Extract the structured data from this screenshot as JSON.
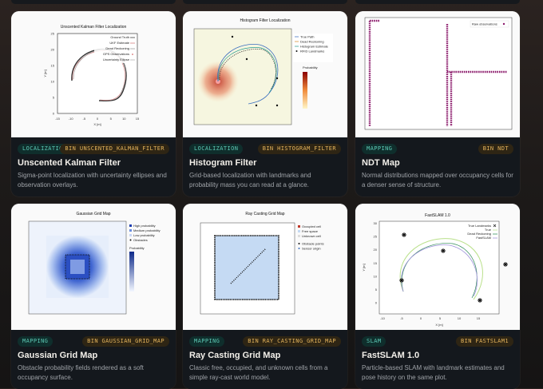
{
  "colors": {
    "tag_category_text": "#5dc9b5",
    "tag_bin_text": "#e4b45c",
    "card_bg": "#14181d"
  },
  "cards": [
    {
      "category": "LOCALIZATION",
      "bin": "BIN UNSCENTED_KALMAN_FILTER",
      "title": "Unscented Kalman Filter",
      "description": "Sigma-point localization with uncertainty ellipses and observation overlays.",
      "plot": {
        "title": "Unscented Kalman Filter Localization",
        "xlabel": "X [m]",
        "ylabel": "Y [m]",
        "xticks": [
          "-15",
          "-10",
          "-5",
          "0",
          "5",
          "10",
          "15"
        ],
        "yticks": [
          "25",
          "20",
          "15",
          "10",
          "5",
          "0"
        ],
        "legend": [
          "Ground Truth",
          "UKF Estimate",
          "Dead Reckoning",
          "GPS Observations",
          "Uncertainty Ellipse"
        ]
      }
    },
    {
      "category": "LOCALIZATION",
      "bin": "BIN HISTOGRAM_FILTER",
      "title": "Histogram Filter",
      "description": "Grid-based localization with landmarks and probability mass you can read at a glance.",
      "plot": {
        "title": "Histogram Filter Localization",
        "legend": [
          "True Path",
          "Dead Reckoning",
          "Histogram Estimate",
          "RFID Landmarks"
        ],
        "colorbar_label": "Probability"
      }
    },
    {
      "category": "MAPPING",
      "bin": "BIN NDT",
      "title": "NDT Map",
      "description": "Normal distributions mapped over occupancy cells for a denser sense of structure.",
      "plot": {
        "legend": [
          "Raw observations"
        ]
      }
    },
    {
      "category": "MAPPING",
      "bin": "BIN GAUSSIAN_GRID_MAP",
      "title": "Gaussian Grid Map",
      "description": "Obstacle probability fields rendered as a soft occupancy surface.",
      "plot": {
        "title": "Gaussian Grid Map",
        "legend": [
          "High probability",
          "Medium probability",
          "Low probability",
          "Obstacles"
        ],
        "colorbar_label": "Probability"
      }
    },
    {
      "category": "MAPPING",
      "bin": "BIN RAY_CASTING_GRID_MAP",
      "title": "Ray Casting Grid Map",
      "description": "Classic free, occupied, and unknown cells from a simple ray-cast world model.",
      "plot": {
        "title": "Ray Casting Grid Map",
        "legend": [
          "Occupied cell",
          "Free space",
          "Unknown cell",
          "Obstacle points",
          "Sensor origin"
        ]
      }
    },
    {
      "category": "SLAM",
      "bin": "BIN FASTSLAM1",
      "title": "FastSLAM 1.0",
      "description": "Particle-based SLAM with landmark estimates and pose history on the same plot.",
      "plot": {
        "title": "FastSLAM 1.0",
        "xlabel": "X [m]",
        "ylabel": "Y [m]",
        "legend": [
          "True Landmarks",
          "True",
          "Dead Reckoning",
          "FastSLAM"
        ],
        "xticks": [
          "-10",
          "-5",
          "0",
          "5",
          "10",
          "15"
        ],
        "yticks": [
          "30",
          "25",
          "20",
          "15",
          "10",
          "5",
          "0"
        ]
      }
    }
  ]
}
